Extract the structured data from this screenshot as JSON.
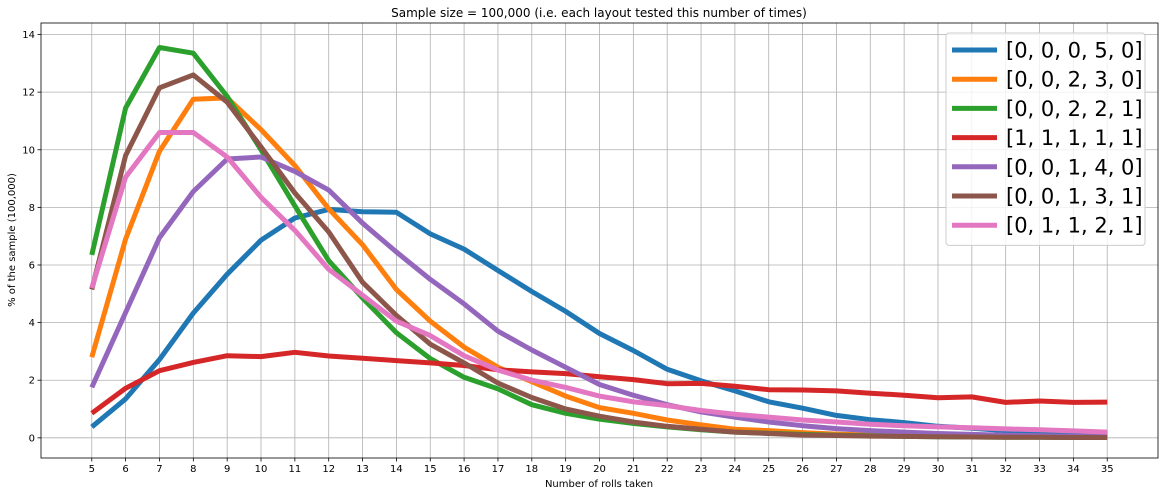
{
  "chart_data": {
    "type": "line",
    "title": "Sample size = 100,000 (i.e. each layout tested this number of times)",
    "xlabel": "Number of rolls taken",
    "ylabel": "% of the sample (100,000)",
    "xlim": [
      3.5,
      36.5
    ],
    "ylim": [
      -0.7,
      14.4
    ],
    "grid": true,
    "legend_placement": "top-right",
    "x": [
      5,
      6,
      7,
      8,
      9,
      10,
      11,
      12,
      13,
      14,
      15,
      16,
      17,
      18,
      19,
      20,
      21,
      22,
      23,
      24,
      25,
      26,
      27,
      28,
      29,
      30,
      31,
      32,
      33,
      34,
      35
    ],
    "x_ticks": [
      5,
      6,
      7,
      8,
      9,
      10,
      11,
      12,
      13,
      14,
      15,
      16,
      17,
      18,
      19,
      20,
      21,
      22,
      23,
      24,
      25,
      26,
      27,
      28,
      29,
      30,
      31,
      32,
      33,
      34,
      35
    ],
    "y_ticks": [
      0,
      2,
      4,
      6,
      8,
      10,
      12,
      14
    ],
    "series": [
      {
        "name": "[0, 0, 0, 5, 0]",
        "color": "#1f77b4",
        "values": [
          0.38,
          1.35,
          2.72,
          4.33,
          5.68,
          6.86,
          7.63,
          7.93,
          7.85,
          7.83,
          7.08,
          6.55,
          5.81,
          5.08,
          4.39,
          3.62,
          3.03,
          2.38,
          1.98,
          1.63,
          1.25,
          1.03,
          0.78,
          0.63,
          0.53,
          0.4,
          0.33,
          0.25,
          0.2,
          0.17,
          0.13
        ]
      },
      {
        "name": "[0, 0, 2, 3, 0]",
        "color": "#ff7f0e",
        "values": [
          2.8,
          6.9,
          9.95,
          11.75,
          11.8,
          10.7,
          9.45,
          7.95,
          6.7,
          5.15,
          4.05,
          3.15,
          2.45,
          1.95,
          1.45,
          1.05,
          0.85,
          0.62,
          0.45,
          0.3,
          0.25,
          0.18,
          0.13,
          0.1,
          0.08,
          0.06,
          0.05,
          0.04,
          0.03,
          0.02,
          0.02
        ]
      },
      {
        "name": "[0, 0, 2, 2, 1]",
        "color": "#2ca02c",
        "values": [
          6.35,
          11.45,
          13.55,
          13.35,
          11.85,
          10.0,
          8.05,
          6.15,
          4.85,
          3.65,
          2.75,
          2.1,
          1.7,
          1.15,
          0.85,
          0.65,
          0.5,
          0.38,
          0.28,
          0.2,
          0.16,
          0.12,
          0.09,
          0.07,
          0.05,
          0.04,
          0.03,
          0.02,
          0.02,
          0.01,
          0.01
        ]
      },
      {
        "name": "[1, 1, 1, 1, 1]",
        "color": "#d62728",
        "values": [
          0.85,
          1.72,
          2.33,
          2.62,
          2.85,
          2.82,
          2.97,
          2.84,
          2.76,
          2.68,
          2.6,
          2.51,
          2.36,
          2.29,
          2.23,
          2.12,
          2.02,
          1.88,
          1.89,
          1.79,
          1.67,
          1.66,
          1.63,
          1.55,
          1.48,
          1.39,
          1.42,
          1.23,
          1.28,
          1.23,
          1.24
        ]
      },
      {
        "name": "[0, 0, 1, 4, 0]",
        "color": "#9467bd",
        "values": [
          1.75,
          4.35,
          6.95,
          8.55,
          9.68,
          9.75,
          9.25,
          8.6,
          7.45,
          6.45,
          5.5,
          4.65,
          3.7,
          3.05,
          2.45,
          1.85,
          1.48,
          1.15,
          0.9,
          0.72,
          0.55,
          0.42,
          0.32,
          0.25,
          0.2,
          0.15,
          0.12,
          0.09,
          0.07,
          0.05,
          0.04
        ]
      },
      {
        "name": "[0, 0, 1, 3, 1]",
        "color": "#8c564b",
        "values": [
          5.15,
          9.8,
          12.15,
          12.6,
          11.65,
          10.1,
          8.5,
          7.15,
          5.4,
          4.25,
          3.25,
          2.6,
          1.9,
          1.4,
          1.0,
          0.75,
          0.55,
          0.4,
          0.3,
          0.2,
          0.15,
          0.1,
          0.08,
          0.06,
          0.05,
          0.04,
          0.03,
          0.02,
          0.02,
          0.01,
          0.01
        ]
      },
      {
        "name": "[0, 1, 1, 2, 1]",
        "color": "#e377c2",
        "values": [
          5.2,
          9.05,
          10.6,
          10.6,
          9.75,
          8.35,
          7.2,
          5.85,
          4.95,
          4.05,
          3.55,
          2.85,
          2.35,
          2.0,
          1.75,
          1.45,
          1.25,
          1.12,
          0.95,
          0.82,
          0.72,
          0.62,
          0.55,
          0.47,
          0.42,
          0.38,
          0.35,
          0.31,
          0.28,
          0.24,
          0.2
        ]
      }
    ]
  }
}
